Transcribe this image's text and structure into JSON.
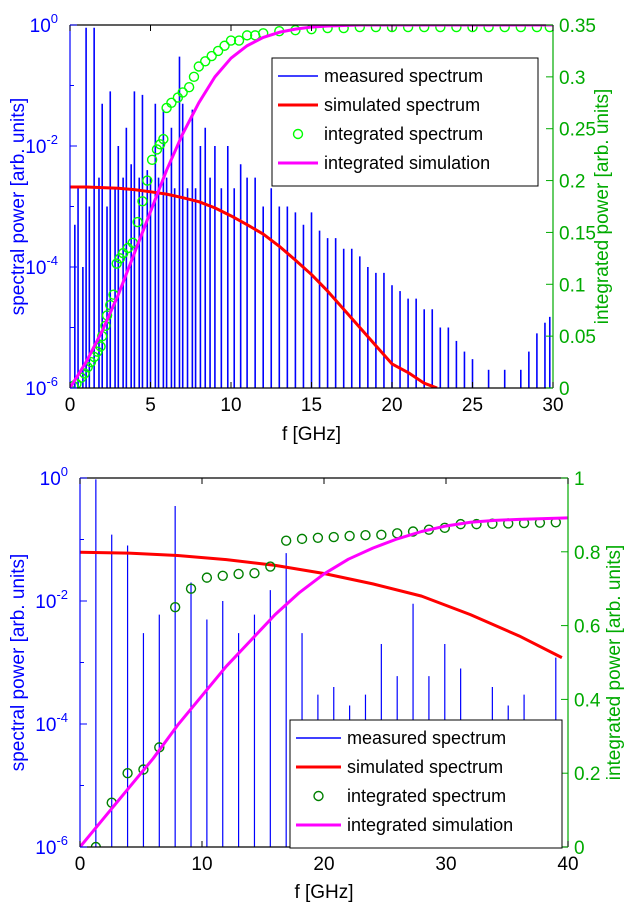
{
  "chart_data": [
    {
      "type": "line",
      "xlabel": "f [GHz]",
      "ylabel": "spectral power [arb. units]",
      "y2label": "integrated power [arb. units]",
      "x_range": [
        0,
        30
      ],
      "y_range": [
        1e-06,
        1
      ],
      "y_scale": "log",
      "y2_range": [
        0,
        0.35
      ],
      "x_ticks": [
        "0",
        "5",
        "10",
        "15",
        "20",
        "25",
        "30"
      ],
      "y_ticks": [
        {
          "base": "10",
          "exp": "0",
          "value": 1
        },
        {
          "base": "10",
          "exp": "-2",
          "value": 0.01
        },
        {
          "base": "10",
          "exp": "-4",
          "value": 0.0001
        },
        {
          "base": "10",
          "exp": "-6",
          "value": 1e-06
        }
      ],
      "y2_ticks": [
        "0",
        "0.05",
        "0.1",
        "0.15",
        "0.2",
        "0.25",
        "0.3",
        "0.35"
      ],
      "y2_tick_values": [
        0,
        0.05,
        0.1,
        0.15,
        0.2,
        0.25,
        0.3,
        0.35
      ],
      "grid": false,
      "legend_position": "top-right",
      "colors": {
        "left_axis": "#0000ff",
        "right_axis": "#00aa00",
        "measured": "#0000ff",
        "simulated": "#ff0000",
        "integrated_spectrum": "#00ff00",
        "integrated_simulation": "#ff00ff"
      },
      "series": [
        {
          "name": "measured spectrum",
          "style": "stems",
          "x": [
            0.3,
            0.5,
            0.8,
            1.0,
            1.2,
            1.5,
            1.8,
            2.0,
            2.3,
            2.5,
            2.8,
            3.0,
            3.3,
            3.5,
            3.8,
            4.0,
            4.3,
            4.5,
            4.8,
            5.0,
            5.3,
            5.5,
            5.8,
            6.0,
            6.3,
            6.5,
            6.8,
            7.0,
            7.3,
            7.6,
            7.8,
            8.1,
            8.4,
            8.7,
            9.0,
            9.4,
            9.8,
            10.2,
            10.6,
            11.0,
            11.5,
            12.0,
            12.5,
            13.0,
            13.5,
            14.0,
            14.5,
            15.0,
            15.5,
            16.0,
            16.5,
            17.0,
            17.5,
            18.0,
            18.5,
            19.0,
            19.5,
            20.0,
            20.5,
            21.0,
            21.5,
            22.0,
            22.5,
            23.0,
            23.5,
            24.0,
            24.5,
            25.0,
            26.0,
            27.0,
            28.0,
            28.5,
            29.0,
            29.5,
            29.8
          ],
          "y": [
            0.0005,
            0.002,
            0.0001,
            0.9,
            0.001,
            0.9,
            0.003,
            0.05,
            0.001,
            0.08,
            0.002,
            0.01,
            0.003,
            0.02,
            0.005,
            0.08,
            0.003,
            0.07,
            0.004,
            0.003,
            0.05,
            0.003,
            0.04,
            0.003,
            0.02,
            0.002,
            0.3,
            0.05,
            0.002,
            0.04,
            0.002,
            0.01,
            0.02,
            0.003,
            0.01,
            0.002,
            0.01,
            0.002,
            0.005,
            0.003,
            0.003,
            0.001,
            0.002,
            0.001,
            0.001,
            0.0008,
            0.0005,
            0.0008,
            0.0004,
            0.0003,
            0.0003,
            0.0002,
            0.0002,
            0.00015,
            0.0001,
            8e-05,
            8e-05,
            5e-05,
            4e-05,
            3e-05,
            3e-05,
            2e-05,
            2e-05,
            1e-05,
            1e-05,
            6e-06,
            4e-06,
            3e-06,
            2e-06,
            2e-06,
            2e-06,
            4e-06,
            8e-06,
            1.2e-05,
            1.5e-05
          ]
        },
        {
          "name": "simulated spectrum",
          "style": "line",
          "x": [
            0,
            1,
            2,
            3,
            4,
            5,
            6,
            7,
            8,
            9,
            10,
            11,
            12,
            13,
            14,
            15,
            16,
            17,
            18,
            19,
            20,
            21,
            22,
            22.8
          ],
          "y": [
            0.0021,
            0.0021,
            0.00205,
            0.002,
            0.0019,
            0.00175,
            0.0016,
            0.0014,
            0.0012,
            0.00095,
            0.0007,
            0.0005,
            0.00035,
            0.00022,
            0.00013,
            7.5e-05,
            4e-05,
            2e-05,
            1e-05,
            5e-06,
            2.5e-06,
            1.8e-06,
            1.2e-06,
            1e-06
          ]
        },
        {
          "name": "integrated spectrum",
          "style": "circles",
          "x": [
            0.2,
            0.4,
            0.7,
            0.9,
            1.1,
            1.3,
            1.5,
            1.7,
            1.9,
            2.0,
            2.2,
            2.3,
            2.5,
            2.7,
            2.9,
            3.1,
            3.3,
            3.6,
            3.9,
            4.2,
            4.5,
            4.8,
            5.1,
            5.4,
            5.6,
            5.8,
            6.0,
            6.3,
            6.7,
            7.0,
            7.4,
            7.7,
            8.0,
            8.4,
            8.8,
            9.2,
            9.6,
            10.0,
            10.5,
            11.0,
            11.5,
            12.0,
            13.0,
            14.0,
            15.0,
            16.0,
            17.0,
            18.0,
            19.0,
            20.0,
            21.0,
            22.0,
            23.0,
            24.0,
            25.0,
            26.0,
            27.0,
            28.0,
            29.0,
            29.8
          ],
          "y": [
            0.002,
            0.004,
            0.01,
            0.014,
            0.02,
            0.025,
            0.03,
            0.035,
            0.04,
            0.05,
            0.06,
            0.07,
            0.08,
            0.09,
            0.12,
            0.125,
            0.13,
            0.135,
            0.14,
            0.16,
            0.18,
            0.2,
            0.22,
            0.23,
            0.235,
            0.24,
            0.27,
            0.275,
            0.28,
            0.285,
            0.29,
            0.3,
            0.31,
            0.315,
            0.32,
            0.325,
            0.33,
            0.335,
            0.335,
            0.34,
            0.34,
            0.342,
            0.344,
            0.345,
            0.346,
            0.347,
            0.347,
            0.348,
            0.348,
            0.348,
            0.348,
            0.348,
            0.348,
            0.348,
            0.348,
            0.348,
            0.348,
            0.348,
            0.348,
            0.348
          ]
        },
        {
          "name": "integrated simulation",
          "style": "line",
          "x": [
            0,
            1,
            2,
            3,
            4,
            5,
            6,
            7,
            8,
            9,
            10,
            11,
            12,
            13,
            14,
            15,
            16,
            17,
            18,
            20,
            22,
            25,
            28,
            30
          ],
          "y": [
            0,
            0.025,
            0.055,
            0.09,
            0.13,
            0.17,
            0.21,
            0.245,
            0.275,
            0.3,
            0.318,
            0.33,
            0.338,
            0.343,
            0.346,
            0.348,
            0.349,
            0.3495,
            0.35,
            0.35,
            0.35,
            0.35,
            0.35,
            0.35
          ]
        }
      ]
    },
    {
      "type": "line",
      "xlabel": "f [GHz]",
      "ylabel": "spectral power [arb. units]",
      "y2label": "integrated power [arb. units]",
      "x_range": [
        0,
        40
      ],
      "y_range": [
        1e-06,
        1
      ],
      "y_scale": "log",
      "y2_range": [
        0,
        1
      ],
      "x_ticks": [
        "0",
        "10",
        "20",
        "30",
        "40"
      ],
      "y_ticks": [
        {
          "base": "10",
          "exp": "0",
          "value": 1
        },
        {
          "base": "10",
          "exp": "-2",
          "value": 0.01
        },
        {
          "base": "10",
          "exp": "-4",
          "value": 0.0001
        },
        {
          "base": "10",
          "exp": "-6",
          "value": 1e-06
        }
      ],
      "y2_ticks": [
        "0",
        "0.2",
        "0.4",
        "0.6",
        "0.8",
        "1"
      ],
      "y2_tick_values": [
        0,
        0.2,
        0.4,
        0.6,
        0.8,
        1
      ],
      "grid": false,
      "legend_position": "bottom-right",
      "colors": {
        "left_axis": "#0000ff",
        "right_axis": "#00aa00",
        "measured": "#0000ff",
        "simulated": "#ff0000",
        "integrated_spectrum": "#008000",
        "integrated_simulation": "#ff00ff"
      },
      "series": [
        {
          "name": "measured spectrum",
          "style": "stems",
          "x": [
            1.3,
            2.6,
            3.9,
            5.2,
            6.5,
            7.8,
            9.1,
            10.4,
            11.7,
            13.0,
            14.3,
            15.6,
            16.9,
            18.2,
            19.5,
            20.8,
            22.1,
            23.4,
            24.7,
            26.0,
            27.3,
            28.6,
            29.9,
            31.2,
            32.5,
            33.8,
            35.1,
            36.4,
            37.7,
            39.0
          ],
          "y": [
            0.95,
            0.12,
            0.08,
            0.003,
            0.006,
            0.35,
            0.02,
            0.005,
            0.01,
            0.003,
            0.006,
            0.015,
            0.06,
            0.003,
            0.0003,
            0.0004,
            0.0002,
            0.0003,
            0.002,
            0.0006,
            0.009,
            0.0006,
            0.002,
            0.0008,
            6e-05,
            0.0004,
            0.0002,
            0.0003,
            6e-05,
            0.0012
          ]
        },
        {
          "name": "simulated spectrum",
          "style": "line",
          "x": [
            0,
            4,
            8,
            12,
            16,
            20,
            24,
            28,
            32,
            36,
            39.5
          ],
          "y": [
            0.062,
            0.06,
            0.055,
            0.047,
            0.038,
            0.028,
            0.019,
            0.012,
            0.006,
            0.0027,
            0.0012
          ]
        },
        {
          "name": "integrated spectrum",
          "style": "circles",
          "x": [
            1.3,
            2.6,
            3.9,
            5.2,
            6.5,
            7.8,
            9.1,
            10.4,
            11.7,
            13.0,
            14.3,
            15.6,
            16.9,
            18.2,
            19.5,
            20.8,
            22.1,
            23.4,
            24.7,
            26.0,
            27.3,
            28.6,
            29.9,
            31.2,
            32.5,
            33.8,
            35.1,
            36.4,
            37.7,
            39.0
          ],
          "y": [
            0.0,
            0.12,
            0.2,
            0.21,
            0.27,
            0.65,
            0.7,
            0.73,
            0.735,
            0.74,
            0.742,
            0.76,
            0.83,
            0.835,
            0.838,
            0.84,
            0.843,
            0.845,
            0.846,
            0.85,
            0.855,
            0.86,
            0.865,
            0.875,
            0.875,
            0.876,
            0.877,
            0.878,
            0.879,
            0.88
          ]
        },
        {
          "name": "integrated simulation",
          "style": "line",
          "x": [
            0,
            2,
            4,
            6,
            8,
            10,
            12,
            14,
            16,
            18,
            20,
            22,
            24,
            26,
            28,
            30,
            32,
            34,
            36,
            38,
            40
          ],
          "y": [
            0,
            0.08,
            0.16,
            0.24,
            0.33,
            0.41,
            0.49,
            0.56,
            0.63,
            0.69,
            0.74,
            0.78,
            0.81,
            0.835,
            0.855,
            0.87,
            0.88,
            0.885,
            0.888,
            0.89,
            0.892
          ]
        }
      ]
    }
  ]
}
